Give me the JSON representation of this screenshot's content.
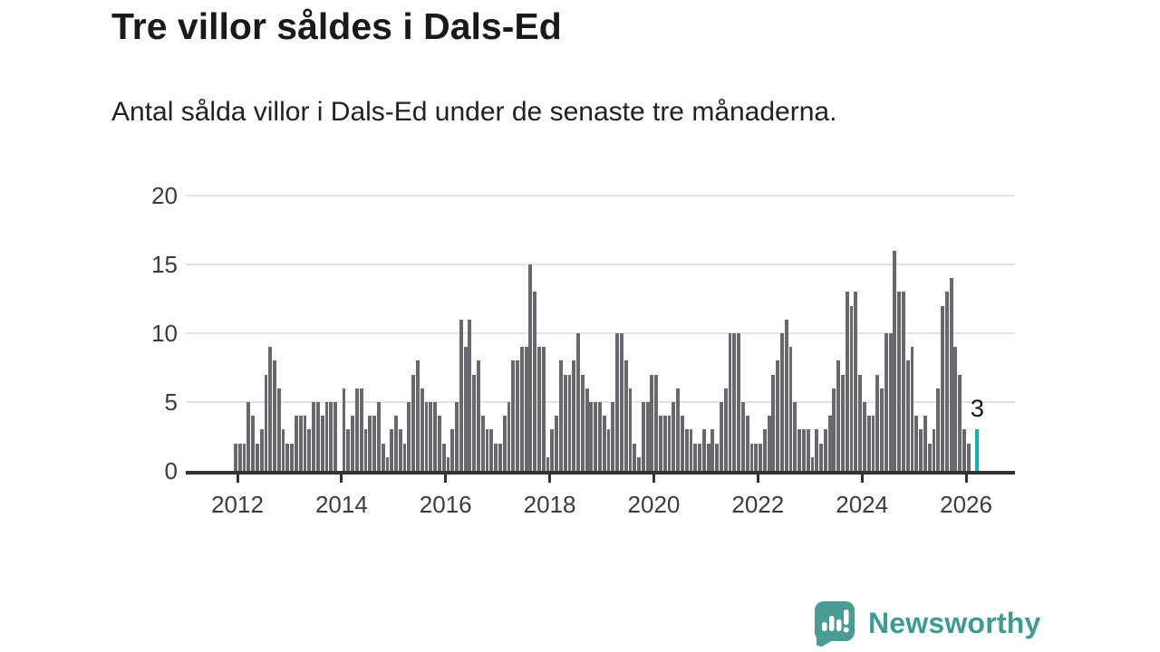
{
  "header": {
    "title": "Tre villor såldes i Dals-Ed",
    "subtitle": "Antal sålda villor i Dals-Ed under de senaste tre månaderna."
  },
  "chart_data": {
    "type": "bar",
    "title": "Tre villor såldes i Dals-Ed",
    "subtitle": "Antal sålda villor i Dals-Ed under de senaste tre månaderna.",
    "unit": "villor",
    "start_month": "2012-01",
    "frequency": "monthly",
    "values": [
      2,
      2,
      2,
      5,
      4,
      2,
      3,
      7,
      9,
      8,
      6,
      3,
      2,
      2,
      4,
      4,
      4,
      3,
      5,
      5,
      4,
      5,
      5,
      5,
      0,
      6,
      3,
      4,
      6,
      6,
      3,
      4,
      4,
      5,
      2,
      1,
      3,
      4,
      3,
      2,
      5,
      7,
      8,
      6,
      5,
      5,
      5,
      4,
      2,
      1,
      3,
      5,
      11,
      9,
      11,
      7,
      8,
      4,
      3,
      3,
      2,
      2,
      4,
      5,
      8,
      8,
      9,
      9,
      15,
      13,
      9,
      9,
      1,
      3,
      4,
      8,
      7,
      7,
      8,
      10,
      7,
      6,
      5,
      5,
      5,
      4,
      3,
      5,
      10,
      10,
      8,
      6,
      2,
      1,
      5,
      5,
      7,
      7,
      4,
      4,
      4,
      5,
      6,
      4,
      3,
      3,
      2,
      2,
      3,
      2,
      3,
      2,
      5,
      6,
      10,
      10,
      10,
      5,
      4,
      2,
      2,
      2,
      3,
      4,
      7,
      8,
      10,
      11,
      9,
      5,
      3,
      3,
      3,
      1,
      3,
      2,
      3,
      4,
      6,
      8,
      7,
      13,
      12,
      13,
      7,
      5,
      4,
      4,
      7,
      6,
      10,
      10,
      16,
      13,
      13,
      8,
      9,
      4,
      3,
      4,
      2,
      3,
      6,
      12,
      13,
      14,
      9,
      7,
      3,
      2,
      0,
      3
    ],
    "highlight_last": true,
    "annotation": {
      "text": "3"
    },
    "yticks": [
      0,
      5,
      10,
      15,
      20
    ],
    "ylim": [
      0,
      20
    ],
    "xticks": [
      "2012",
      "2014",
      "2016",
      "2018",
      "2020",
      "2022",
      "2024",
      "2026"
    ],
    "grid": true,
    "legend": "none",
    "bar_color": "#68686e",
    "highlight_color": "#0eb1b3",
    "gridline_color": "#e4e4e4",
    "axis_color": "#333333"
  },
  "footer": {
    "brand": "Newsworthy",
    "logo_color": "#4a9d95"
  }
}
